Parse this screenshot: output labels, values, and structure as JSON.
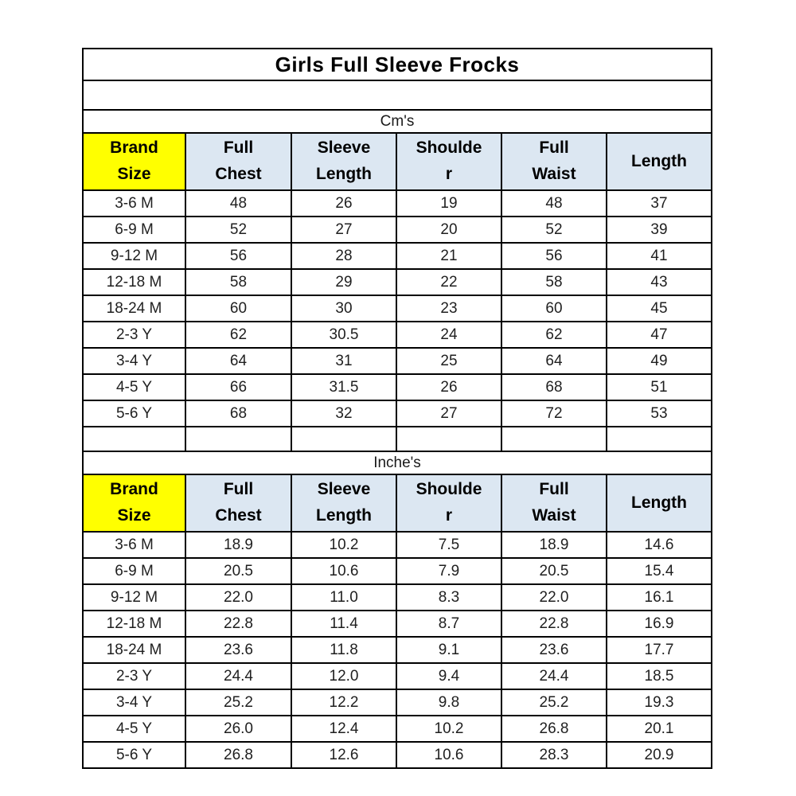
{
  "title": "Girls Full Sleeve Frocks",
  "colors": {
    "brand_size_header_bg": "#ffff00",
    "header_bg": "#dce7f2",
    "border": "#000000",
    "background": "#ffffff"
  },
  "chart_data": {
    "type": "table",
    "title": "Girls Full Sleeve Frocks",
    "column_headers": [
      "Brand Size",
      "Full Chest",
      "Sleeve Length",
      "Shoulder",
      "Full Waist",
      "Length"
    ],
    "column_header_lines": [
      [
        "Brand",
        "Size"
      ],
      [
        "Full",
        "Chest"
      ],
      [
        "Sleeve",
        "Length"
      ],
      [
        "Shoulde",
        "r"
      ],
      [
        "Full",
        "Waist"
      ],
      [
        "Length"
      ]
    ],
    "sections": [
      {
        "unit_label": "Cm's",
        "rows": [
          [
            "3-6 M",
            "48",
            "26",
            "19",
            "48",
            "37"
          ],
          [
            "6-9 M",
            "52",
            "27",
            "20",
            "52",
            "39"
          ],
          [
            "9-12 M",
            "56",
            "28",
            "21",
            "56",
            "41"
          ],
          [
            "12-18 M",
            "58",
            "29",
            "22",
            "58",
            "43"
          ],
          [
            "18-24 M",
            "60",
            "30",
            "23",
            "60",
            "45"
          ],
          [
            "2-3 Y",
            "62",
            "30.5",
            "24",
            "62",
            "47"
          ],
          [
            "3-4 Y",
            "64",
            "31",
            "25",
            "64",
            "49"
          ],
          [
            "4-5 Y",
            "66",
            "31.5",
            "26",
            "68",
            "51"
          ],
          [
            "5-6 Y",
            "68",
            "32",
            "27",
            "72",
            "53"
          ]
        ]
      },
      {
        "unit_label": "Inche's",
        "rows": [
          [
            "3-6 M",
            "18.9",
            "10.2",
            "7.5",
            "18.9",
            "14.6"
          ],
          [
            "6-9 M",
            "20.5",
            "10.6",
            "7.9",
            "20.5",
            "15.4"
          ],
          [
            "9-12 M",
            "22.0",
            "11.0",
            "8.3",
            "22.0",
            "16.1"
          ],
          [
            "12-18 M",
            "22.8",
            "11.4",
            "8.7",
            "22.8",
            "16.9"
          ],
          [
            "18-24 M",
            "23.6",
            "11.8",
            "9.1",
            "23.6",
            "17.7"
          ],
          [
            "2-3 Y",
            "24.4",
            "12.0",
            "9.4",
            "24.4",
            "18.5"
          ],
          [
            "3-4 Y",
            "25.2",
            "12.2",
            "9.8",
            "25.2",
            "19.3"
          ],
          [
            "4-5 Y",
            "26.0",
            "12.4",
            "10.2",
            "26.8",
            "20.1"
          ],
          [
            "5-6 Y",
            "26.8",
            "12.6",
            "10.6",
            "28.3",
            "20.9"
          ]
        ]
      }
    ]
  }
}
